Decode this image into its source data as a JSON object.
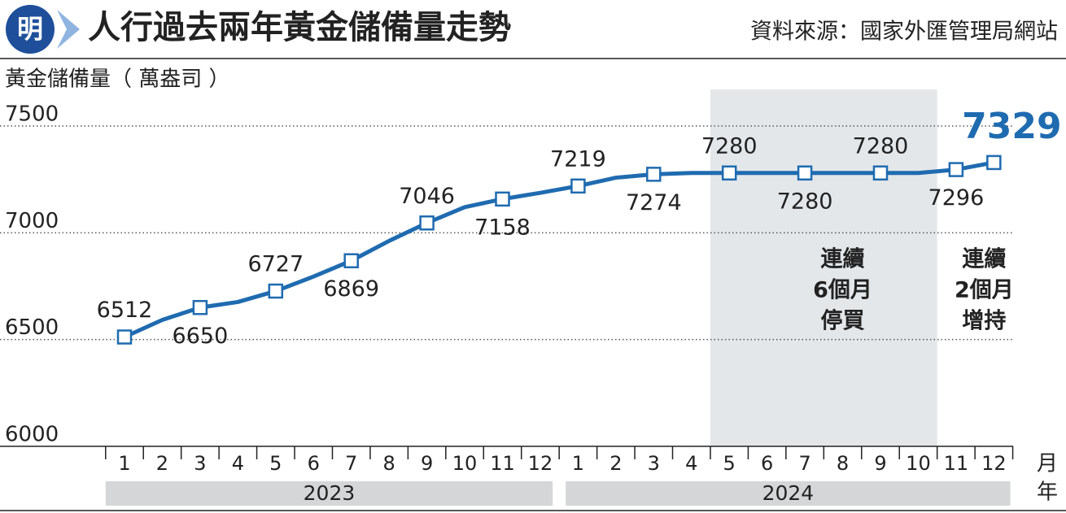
{
  "chart_data": {
    "type": "line",
    "logo": "明",
    "title": "人行過去兩年黃金儲備量走勢",
    "source": "資料來源：國家外匯管理局網站",
    "y_label": "黃金儲備量（ 萬盎司 ）",
    "categories": [
      "1",
      "2",
      "3",
      "4",
      "5",
      "6",
      "7",
      "8",
      "9",
      "10",
      "11",
      "12",
      "1",
      "2",
      "3",
      "4",
      "5",
      "6",
      "7",
      "8",
      "9",
      "10",
      "11",
      "12"
    ],
    "x_unit": "月",
    "years": [
      "2023",
      "2024"
    ],
    "year_unit": "年",
    "series": [
      {
        "name": "黃金儲備量",
        "color": "#1f6bb0",
        "values": [
          6512,
          6592,
          6650,
          6676,
          6727,
          6795,
          6869,
          6962,
          7046,
          7120,
          7158,
          7187,
          7219,
          7258,
          7274,
          7280,
          7280,
          7280,
          7280,
          7280,
          7280,
          7280,
          7296,
          7329
        ],
        "value_labels": [
          "6512",
          null,
          "6650",
          null,
          "6727",
          null,
          "6869",
          null,
          "7046",
          null,
          "7158",
          null,
          "7219",
          null,
          "7274",
          null,
          "7280",
          null,
          "7280",
          null,
          "7280",
          null,
          "7296",
          "7329"
        ]
      }
    ],
    "ylim": [
      6000,
      7500
    ],
    "yticks": [
      6000,
      6500,
      7000,
      7500
    ],
    "grid": true,
    "shade": [
      16,
      21
    ],
    "annotations": [
      {
        "lines": [
          "連續",
          "6個月",
          "停買"
        ],
        "at": 19
      },
      {
        "lines": [
          "連續",
          "2個月",
          "增持"
        ],
        "at": 23
      }
    ]
  }
}
